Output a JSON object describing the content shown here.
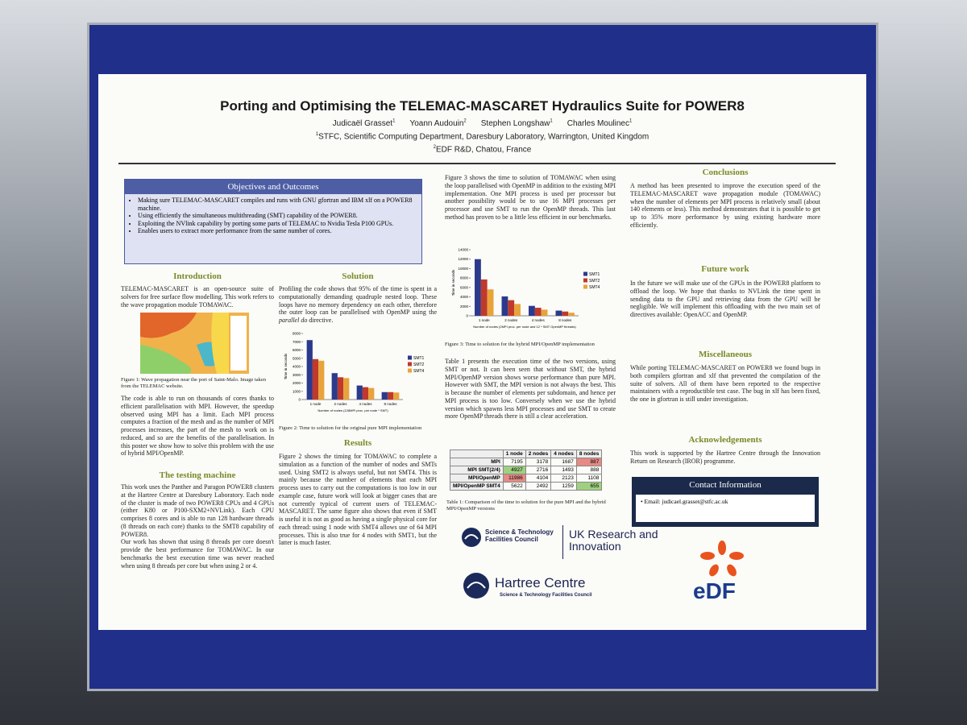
{
  "header": {
    "title": "Porting and Optimising the TELEMAC-MASCARET Hydraulics Suite for POWER8",
    "authors": [
      {
        "name": "Judicaël Grasset",
        "affiliation": 1
      },
      {
        "name": "Yoann Audouin",
        "affiliation": 2
      },
      {
        "name": "Stephen Longshaw",
        "affiliation": 1
      },
      {
        "name": "Charles Moulinec",
        "affiliation": 1
      }
    ],
    "affiliations": [
      {
        "mark": 1,
        "text": "STFC, Scientific Computing Department, Daresbury Laboratory, Warrington, United Kingdom"
      },
      {
        "mark": 2,
        "text": "EDF R&D, Chatou, France"
      }
    ]
  },
  "objectives": {
    "heading": "Objectives and Outcomes",
    "items": [
      "Making sure TELEMAC-MASCARET compiles and runs with GNU gfortran and IBM xlf on a POWER8 machine.",
      "Using efficiently the simultaneous multithreading (SMT) capability of the POWER8.",
      "Exploiting the NVlink capability by porting some parts of TELEMAC to Nvidia Tesla P100 GPUs.",
      "Enables users to extract more performance from the same number of cores."
    ]
  },
  "introduction": {
    "heading": "Introduction",
    "text": "TELEMAC-MASCARET is an open-source suite of solvers for free surface flow modelling. This work refers to the wave propagation module TOMAWAC.",
    "figure_caption": "Figure 1: Wave propagation near the port of Saint-Malo. Image taken from the TELEMAC website.",
    "text2": "The code is able to run on thousands of cores thanks to efficient parallelisation with MPI. However, the speedup observed using MPI has a limit. Each MPI process computes a fraction of the mesh and as the number of MPI processes increases, the part of the mesh to work on is reduced, and so are the benefits of the parallelisation. In this poster we show how to solve this problem with the use of hybrid MPI/OpenMP."
  },
  "testing_machine": {
    "heading": "The testing machine",
    "paragraphs": [
      "This work uses the Panther and Paragon POWER8 clusters at the Hartree Centre at Daresbury Laboratory. Each node of the cluster is made of two POWER8 CPUs and 4 GPUs (either K80 or P100-SXM2+NVLink). Each CPU comprises 8 cores and is able to run 128 hardware threads (8 threads on each core) thanks to the SMT8 capability of POWER8.",
      "Our work has shown that using 8 threads per core doesn't provide the best performance for TOMAWAC. In our benchmarks the best execution time was never reached when using 8 threads per core but when using 2 or 4."
    ]
  },
  "solution": {
    "heading": "Solution",
    "text": [
      "Profiling the code shows that 95% of the time is spent in a computationally demanding quadruple nested loop. These loops have no memory dependency on each other, therefore the outer loop can be parallelised with OpenMP using the",
      "parallel do",
      "directive."
    ],
    "figure": {
      "type": "bar",
      "ylabel": "Time in seconds",
      "xlabel": "Number of nodes (128MPI proc. per node * SMT)",
      "categories": [
        "1 node",
        "2 nodes",
        "4 nodes",
        "8 nodes"
      ],
      "series": [
        {
          "name": "SMT1",
          "color": "#2b3a8c",
          "values": [
            7200,
            3200,
            1700,
            900
          ]
        },
        {
          "name": "SMT2",
          "color": "#c0392b",
          "values": [
            4900,
            2700,
            1500,
            900
          ]
        },
        {
          "name": "SMT4",
          "color": "#e8a33a",
          "values": [
            4700,
            2600,
            1400,
            850
          ]
        }
      ],
      "ylim": [
        0,
        8000
      ],
      "yticks": [
        0,
        1000,
        2000,
        3000,
        4000,
        5000,
        6000,
        7000,
        8000
      ]
    },
    "figure_caption": "Figure 2: Time to solution for the original pure MPI implementation"
  },
  "results": {
    "heading": "Results",
    "text": "Figure 2 shows the timing for TOMAWAC to complete a simulation as a function of the number of nodes and SMTs used. Using SMT2 is always useful, but not SMT4. This is mainly because the number of elements that each MPI process uses to carry out the computations is too low in our example case, future work will look at bigger cases that are not currently typical of current users of TELEMAC-MASCARET. The same figure also shows that even if SMT is useful it is not as good as having a single physical core for each thread: using 1 node with SMT4 allows use of 64 MPI processes. This is also true for 4 nodes with SMT1, but the latter is much faster."
  },
  "hybrid": {
    "text": "Figure 3 shows the time to solution of TOMAWAC when using the loop parallelised with OpenMP in addition to the existing MPI implementation. One MPI process is used per processor but another possibility would be to use 16 MPI processes per processor and use SMT to run the OpenMP threads. This last method has proven to be a little less efficient in our benchmarks.",
    "figure": {
      "type": "bar",
      "ylabel": "Time in seconds",
      "xlabel": "Number of nodes (2MPI proc. per node and 12 * SMT OpenMP threads)",
      "categories": [
        "1 node",
        "2 nodes",
        "4 nodes",
        "8 nodes"
      ],
      "series": [
        {
          "name": "SMT1",
          "color": "#2b3a8c",
          "values": [
            12000,
            4100,
            2100,
            1100
          ]
        },
        {
          "name": "SMT2",
          "color": "#c0392b",
          "values": [
            7700,
            3300,
            1700,
            900
          ]
        },
        {
          "name": "SMT4",
          "color": "#e8a33a",
          "values": [
            5600,
            2500,
            1300,
            650
          ]
        }
      ],
      "ylim": [
        0,
        14000
      ],
      "yticks": [
        0,
        2000,
        4000,
        6000,
        8000,
        10000,
        12000,
        14000
      ]
    },
    "figure_caption": "Figure 3: Time to solution for the hybrid MPI/OpenMP implementation",
    "text2": "Table 1 presents the execution time of the two versions, using SMT or not. It can been seen that without SMT, the hybrid MPI/OpenMP version shows worse performance than pure MPI. However with SMT, the MPI version is not always the best. This is because the number of elements per subdomain, and hence per MPI process is too low. Conversely when we use the hybrid version which spawns less MPI processes and use SMT to create more OpenMP threads there is still a clear acceleration.",
    "table": {
      "header": [
        "1 node",
        "2 nodes",
        "4 nodes",
        "8 nodes"
      ],
      "rows": [
        [
          "MPI",
          7195,
          3178,
          1687,
          887
        ],
        [
          "MPI SMT(2/4)",
          4927,
          2716,
          1493,
          888
        ],
        [
          "MPI/OpenMP",
          11986,
          4104,
          2123,
          1108
        ],
        [
          "MPI/OpenMP SMT4",
          5622,
          2492,
          1259,
          655
        ]
      ],
      "highlights": [
        {
          "cell": [
            0,
            4
          ],
          "color": "#e58a84"
        },
        {
          "cell": [
            1,
            1
          ],
          "color": "#9fd07f"
        },
        {
          "cell": [
            2,
            1
          ],
          "color": "#e58a84"
        },
        {
          "cell": [
            3,
            4
          ],
          "color": "#9fd07f"
        }
      ],
      "caption": "Table 1: Comparison of the time to solution for the pure MPI and the hybrid MPI/OpenMP versions"
    }
  },
  "conclusions": {
    "heading": "Conclusions",
    "text": "A method has been presented to improve the execution speed of the TELEMAC-MASCARET wave propagation module (TOMAWAC) when the number of elements per MPI process is relatively small (about 140 elements or less). This method demonstrates that it is possible to get up to 35% more performance by using existing hardware more efficiently."
  },
  "future_work": {
    "heading": "Future work",
    "text": "In the future we will make use of the GPUs in the POWER8 platform to offload the loop. We hope that thanks to NVLink the time spent in sending data to the GPU and retrieving data from the GPU will be negligible. We will implement this offloading with the two main set of directives available: OpenACC and OpenMP."
  },
  "miscellaneous": {
    "heading": "Miscellaneous",
    "text": "While porting TELEMAC-MASCARET on POWER8 we found bugs in both compilers gfortran and xlf that prevented the compilation of the suite of solvers. All of them have been reported to the respective maintainers with a reproductible test case. The bug in xlf has been fixed, the one in gfortran is still under investigation."
  },
  "acknowledgements": {
    "heading": "Acknowledgements",
    "text": "This work is supported by the Hartree Centre through the Innovation Return on Research (IROR) programme."
  },
  "contact": {
    "heading": "Contact Information",
    "email": "Email: judicael.grasset@stfc.ac.uk"
  },
  "logos": {
    "stfc": "Science & Technology Facilities Council",
    "ukri": "UK Research and Innovation",
    "hartree": "Hartree Centre",
    "hartree_sub": "Science & Technology Facilities Council",
    "edf": "eDF"
  }
}
